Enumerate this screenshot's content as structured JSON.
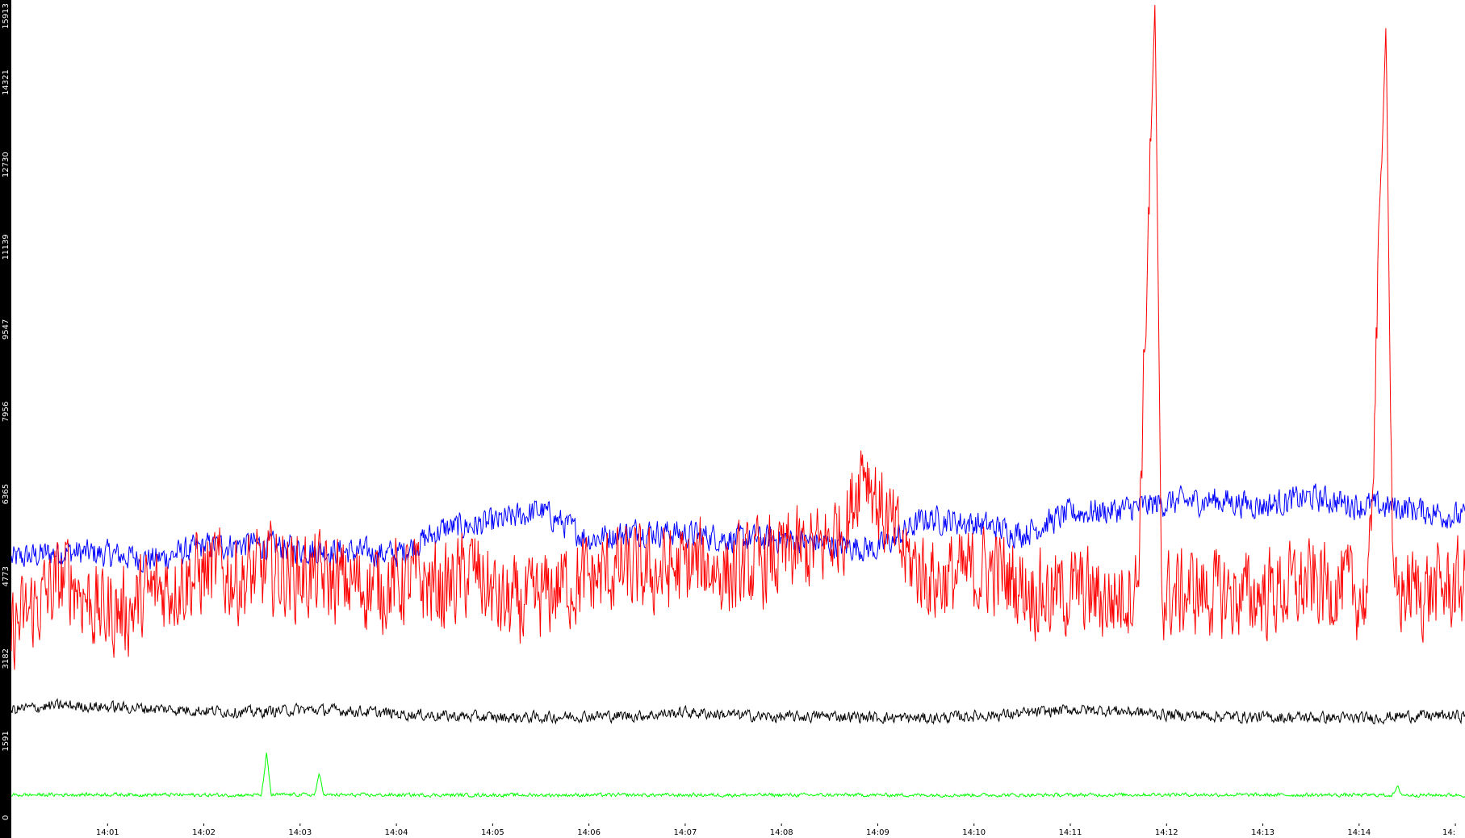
{
  "chart_data": {
    "type": "line",
    "title": "",
    "xlabel": "",
    "ylabel": "",
    "ylim": [
      0,
      15913
    ],
    "y_ticks": [
      "0",
      "1591",
      "3182",
      "4773",
      "6365",
      "7956",
      "9547",
      "11139",
      "12730",
      "14321",
      "15913"
    ],
    "x_ticks": [
      "14:01",
      "14:02",
      "14:03",
      "14:04",
      "14:05",
      "14:06",
      "14:07",
      "14:08",
      "14:09",
      "14:10",
      "14:11",
      "14:12",
      "14:13",
      "14:14",
      "14:"
    ],
    "x_range_minutes": [
      0,
      15.1
    ],
    "grid": false,
    "legend": "none",
    "colors": {
      "plot_bg": "#ffffff",
      "axis_bg": "#000000"
    },
    "series": [
      {
        "color": "#0000ff",
        "x": [
          0,
          0.5,
          1,
          1.5,
          2,
          2.5,
          3,
          3.5,
          4,
          4.5,
          5,
          5.5,
          6,
          6.5,
          7,
          7.5,
          8,
          8.5,
          9,
          9.5,
          10,
          10.5,
          11,
          11.5,
          12,
          12.5,
          13,
          13.5,
          14,
          14.5,
          15.1
        ],
        "values": [
          5100,
          5250,
          5200,
          5100,
          5350,
          5400,
          5300,
          5250,
          5200,
          5700,
          5800,
          6050,
          5500,
          5650,
          5600,
          5500,
          5500,
          5400,
          5300,
          5900,
          5800,
          5600,
          6000,
          6050,
          6200,
          6250,
          6150,
          6300,
          6150,
          6100,
          5900
        ]
      },
      {
        "color": "#ff0000",
        "x": [
          0,
          0.3,
          0.6,
          0.9,
          1.2,
          1.5,
          1.8,
          2.1,
          2.4,
          2.7,
          3.0,
          3.3,
          3.6,
          3.9,
          4.2,
          4.5,
          4.8,
          5.1,
          5.4,
          5.7,
          6.0,
          6.3,
          6.6,
          6.9,
          7.2,
          7.5,
          7.8,
          8.1,
          8.4,
          8.7,
          8.85,
          9.0,
          9.3,
          9.6,
          9.9,
          10.2,
          10.5,
          10.8,
          11.1,
          11.4,
          11.7,
          11.88,
          11.95,
          12.05,
          12.3,
          12.6,
          12.9,
          13.2,
          13.5,
          13.8,
          14.1,
          14.28,
          14.35,
          14.45,
          14.7,
          15.1
        ],
        "values": [
          3700,
          4300,
          4800,
          4100,
          4100,
          4500,
          4700,
          4900,
          4700,
          4900,
          4800,
          4700,
          4600,
          4600,
          4700,
          4500,
          4900,
          4200,
          4200,
          4600,
          4700,
          4900,
          4800,
          4900,
          5000,
          4800,
          5000,
          5200,
          5300,
          5900,
          7100,
          6200,
          5100,
          4700,
          4800,
          4900,
          4600,
          4400,
          4500,
          4300,
          4600,
          15900,
          4400,
          4400,
          4500,
          4400,
          4400,
          4500,
          4600,
          4600,
          4300,
          15500,
          4300,
          4500,
          4500,
          4600
        ]
      },
      {
        "color": "#000000",
        "x": [
          0,
          0.5,
          1,
          1.5,
          2,
          2.5,
          3,
          3.5,
          4,
          4.5,
          5,
          5.5,
          6,
          6.5,
          7,
          7.5,
          8,
          8.5,
          9,
          9.5,
          10,
          10.5,
          11,
          11.5,
          12,
          12.5,
          13,
          13.5,
          14,
          14.5,
          15.1
        ],
        "values": [
          2200,
          2280,
          2250,
          2220,
          2180,
          2150,
          2200,
          2180,
          2120,
          2080,
          2050,
          2050,
          2080,
          2080,
          2150,
          2100,
          2050,
          2080,
          2050,
          2030,
          2080,
          2120,
          2200,
          2180,
          2100,
          2080,
          2050,
          2050,
          2030,
          2080,
          2080
        ]
      },
      {
        "color": "#00ff00",
        "x": [
          0,
          1,
          2,
          2.6,
          2.65,
          2.7,
          3,
          3.15,
          3.2,
          3.25,
          4,
          5,
          6,
          7,
          8,
          9,
          10,
          11,
          12,
          13,
          14,
          14.35,
          14.4,
          14.45,
          15.1
        ],
        "values": [
          550,
          560,
          550,
          550,
          1350,
          550,
          560,
          550,
          950,
          550,
          550,
          550,
          550,
          550,
          550,
          550,
          550,
          550,
          560,
          550,
          550,
          550,
          700,
          550,
          550
        ]
      }
    ]
  }
}
